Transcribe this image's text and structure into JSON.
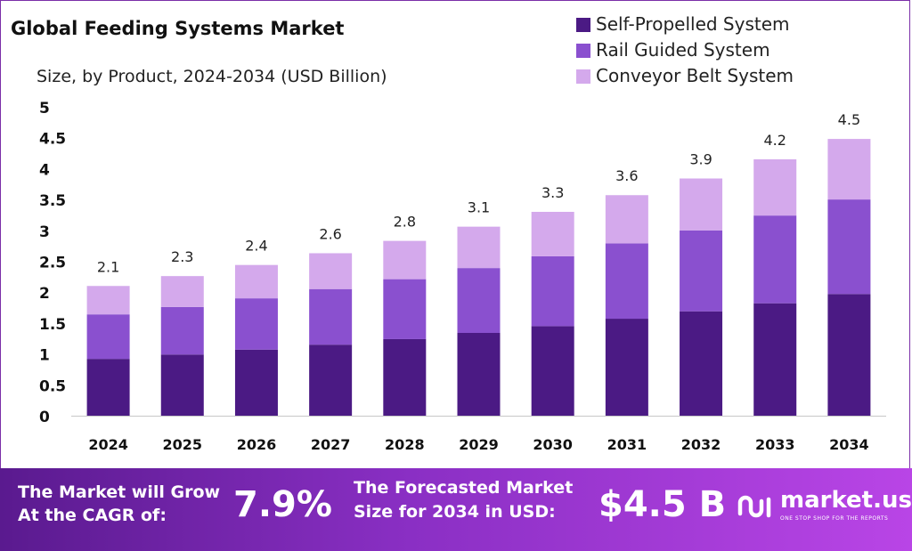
{
  "header": {
    "title": "Global Feeding Systems Market",
    "subtitle": "Size, by Product, 2024-2034 (USD Billion)"
  },
  "legend": [
    {
      "label": "Self-Propelled System",
      "color": "#4b1a84"
    },
    {
      "label": "Rail Guided System",
      "color": "#8a50cf"
    },
    {
      "label": "Conveyor Belt System",
      "color": "#d4a9ec"
    }
  ],
  "chart_data": {
    "type": "bar",
    "stacked": true,
    "categories": [
      "2024",
      "2025",
      "2026",
      "2027",
      "2028",
      "2029",
      "2030",
      "2031",
      "2032",
      "2033",
      "2034"
    ],
    "series": [
      {
        "name": "Self-Propelled System",
        "color": "#4b1a84",
        "values": [
          0.92,
          0.99,
          1.07,
          1.15,
          1.24,
          1.34,
          1.45,
          1.57,
          1.69,
          1.82,
          1.97
        ]
      },
      {
        "name": "Rail Guided System",
        "color": "#8a50cf",
        "values": [
          0.72,
          0.77,
          0.83,
          0.9,
          0.97,
          1.05,
          1.13,
          1.22,
          1.31,
          1.42,
          1.53
        ]
      },
      {
        "name": "Conveyor Belt System",
        "color": "#d4a9ec",
        "values": [
          0.46,
          0.5,
          0.54,
          0.58,
          0.62,
          0.67,
          0.72,
          0.78,
          0.84,
          0.91,
          0.98
        ]
      }
    ],
    "totals": [
      "2.1",
      "2.3",
      "2.4",
      "2.6",
      "2.8",
      "3.1",
      "3.3",
      "3.6",
      "3.9",
      "4.2",
      "4.5"
    ],
    "yticks": [
      "0",
      "0.5",
      "1",
      "1.5",
      "2",
      "2.5",
      "3",
      "3.5",
      "4",
      "4.5",
      "5"
    ],
    "ylim": [
      0,
      5
    ],
    "grid": false,
    "legend_position": "top-right"
  },
  "banner": {
    "cagr_line1": "The Market will Grow",
    "cagr_line2": "At the CAGR of:",
    "cagr_value": "7.9%",
    "forecast_line1": "The Forecasted Market",
    "forecast_line2": "Size for 2034 in USD:",
    "forecast_value": "$4.5 B",
    "logo_text": "market.us",
    "logo_tagline": "ONE STOP SHOP FOR THE REPORTS"
  }
}
